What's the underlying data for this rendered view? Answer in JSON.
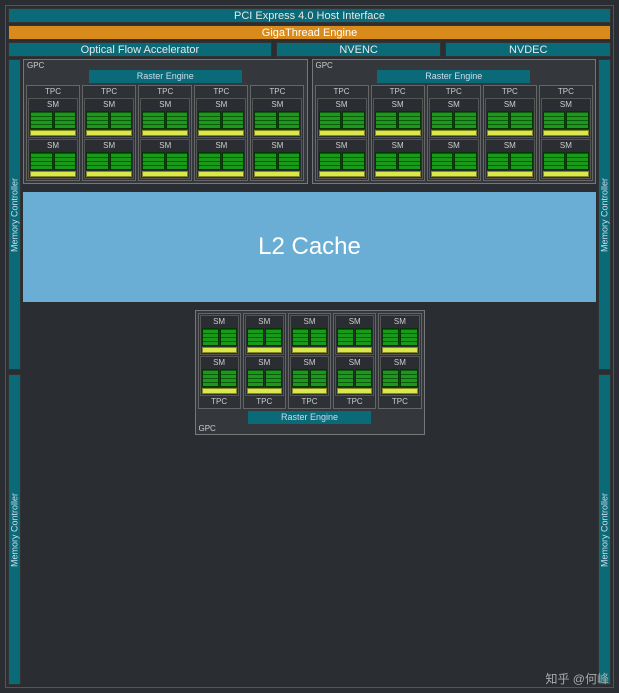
{
  "colors": {
    "background": "#2a2e33",
    "teal": "#0a6a78",
    "orange": "#d88a1a",
    "l2_blue": "#6aaed6",
    "core_green": "#1a9a1a",
    "tensor_yellow": "#d9e84a",
    "border": "#555555",
    "text_light": "#e8e8e8"
  },
  "header": {
    "pci": "PCI Express 4.0 Host Interface",
    "giga": "GigaThread Engine",
    "ofa": "Optical Flow Accelerator",
    "nvenc": "NVENC",
    "nvdec": "NVDEC"
  },
  "labels": {
    "gpc": "GPC",
    "raster": "Raster Engine",
    "tpc": "TPC",
    "sm": "SM",
    "mem": "Memory Controller",
    "l2": "L2 Cache"
  },
  "layout": {
    "top_gpcs": 2,
    "bottom_gpcs": 1,
    "tpcs_per_gpc": 5,
    "sms_per_tpc": 2,
    "core_columns_per_sm": 2,
    "mem_controllers_per_side": 2
  },
  "watermark": "知乎 @何峰"
}
